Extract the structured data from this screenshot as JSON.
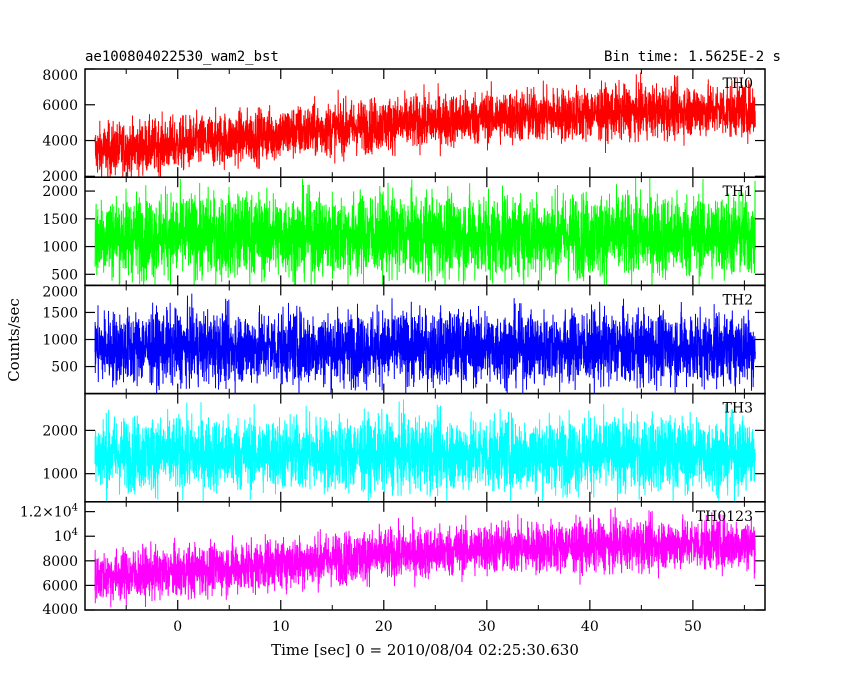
{
  "header": {
    "title": "ae100804022530_wam2_bst",
    "bin_time": "Bin time: 1.5625E-2 s"
  },
  "axes": {
    "xlabel": "Time [sec] 0 = 2010/08/04 02:25:30.630",
    "ylabel": "Counts/sec"
  },
  "chart_data": {
    "type": "line",
    "title": "ae100804022530_wam2_bst",
    "subtitle": "Bin time: 1.5625E-2 s",
    "xlabel": "Time [sec] 0 = 2010/08/04 02:25:30.630",
    "ylabel": "Counts/sec",
    "xlim": [
      -9,
      57
    ],
    "x_data_range": [
      -8,
      56
    ],
    "x_ticks": [
      0,
      10,
      20,
      30,
      40,
      50
    ],
    "x_tick_labels": [
      "0",
      "10",
      "20",
      "30",
      "40",
      "50"
    ],
    "grid": false,
    "legend": "none",
    "panels": [
      {
        "name": "TH0",
        "color": "#ff0000",
        "ylim": [
          1950,
          8000
        ],
        "y_ticks": [
          2000,
          4000,
          6000,
          8000
        ],
        "y_tick_labels": [
          "2000",
          "4000",
          "6000",
          "8000"
        ],
        "trend_x": [
          -8,
          0,
          10,
          20,
          30,
          40,
          50,
          56
        ],
        "trend_mean": [
          3400,
          3800,
          4400,
          4900,
          5300,
          5500,
          5700,
          5700
        ],
        "noise_sigma": 750
      },
      {
        "name": "TH1",
        "color": "#00ff00",
        "ylim": [
          300,
          2250
        ],
        "y_ticks": [
          500,
          1000,
          1500,
          2000
        ],
        "y_tick_labels": [
          "500",
          "1000",
          "1500",
          "2000"
        ],
        "trend_x": [
          -8,
          56
        ],
        "trend_mean": [
          1200,
          1200
        ],
        "noise_sigma": 380
      },
      {
        "name": "TH2",
        "color": "#0000ff",
        "ylim": [
          0,
          2000
        ],
        "y_ticks": [
          500,
          1000,
          1500,
          2000
        ],
        "y_tick_labels": [
          "500",
          "1000",
          "1500",
          "2000"
        ],
        "trend_x": [
          -8,
          56
        ],
        "trend_mean": [
          850,
          850
        ],
        "noise_sigma": 340
      },
      {
        "name": "TH3",
        "color": "#00ffff",
        "ylim": [
          350,
          2850
        ],
        "y_ticks": [
          1000,
          2000
        ],
        "y_tick_labels": [
          "1000",
          "2000"
        ],
        "trend_x": [
          -8,
          56
        ],
        "trend_mean": [
          1450,
          1450
        ],
        "noise_sigma": 430
      },
      {
        "name": "TH0123",
        "color": "#ff00ff",
        "ylim": [
          4000,
          12800
        ],
        "y_ticks": [
          4000,
          6000,
          8000,
          10000,
          12000
        ],
        "y_tick_labels": [
          "4000",
          "6000",
          "8000",
          "10^4",
          "1.2×10^4"
        ],
        "trend_x": [
          -8,
          0,
          10,
          20,
          30,
          40,
          50,
          56
        ],
        "trend_mean": [
          6700,
          7100,
          7800,
          8500,
          9000,
          9200,
          9400,
          9400
        ],
        "noise_sigma": 1050
      }
    ]
  }
}
